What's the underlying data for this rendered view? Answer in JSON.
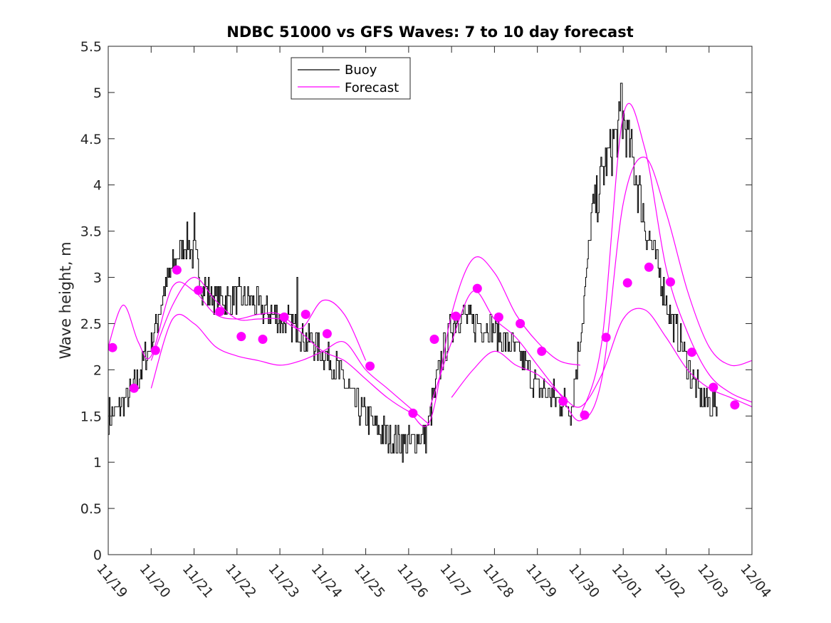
{
  "chart_data": {
    "type": "line",
    "title": "NDBC 51000 vs GFS Waves: 7 to 10 day forecast",
    "xlabel": "",
    "ylabel": "Wave height, m",
    "xlim": [
      0,
      15
    ],
    "ylim": [
      0,
      5.5
    ],
    "x_tick_values": [
      0,
      1,
      2,
      3,
      4,
      5,
      6,
      7,
      8,
      9,
      10,
      11,
      12,
      13,
      14,
      15
    ],
    "x_tick_labels": [
      "11/19",
      "11/20",
      "11/21",
      "11/22",
      "11/23",
      "11/24",
      "11/25",
      "11/26",
      "11/27",
      "11/28",
      "11/29",
      "11/30",
      "12/01",
      "12/02",
      "12/03",
      "12/04"
    ],
    "y_tick_values": [
      0,
      0.5,
      1,
      1.5,
      2,
      2.5,
      3,
      3.5,
      4,
      4.5,
      5,
      5.5
    ],
    "y_tick_labels": [
      "0",
      "0.5",
      "1",
      "1.5",
      "2",
      "2.5",
      "3",
      "3.5",
      "4",
      "4.5",
      "5",
      "5.5"
    ],
    "legend": {
      "position": "top-left",
      "entries": [
        {
          "label": "Buoy",
          "color": "#000000"
        },
        {
          "label": "Forecast",
          "color": "#ff00ff"
        }
      ]
    },
    "colors": {
      "buoy": "#000000",
      "forecast": "#ff00ff"
    },
    "buoy": {
      "name": "Buoy",
      "x": [
        0,
        0.3,
        0.6,
        1.0,
        1.4,
        1.8,
        2.05,
        2.2,
        2.4,
        2.7,
        3.0,
        3.4,
        3.8,
        4.2,
        4.6,
        5.0,
        5.4,
        5.8,
        6.2,
        6.6,
        7.0,
        7.4,
        7.75,
        8.0,
        8.2,
        8.5,
        8.8,
        9.2,
        9.6,
        10.0,
        10.4,
        10.8,
        11.1,
        11.25,
        11.5,
        11.8,
        12.0,
        12.2,
        12.5,
        12.8,
        13.1,
        13.4,
        13.6,
        13.8,
        14.0,
        14.2
      ],
      "y": [
        1.5,
        1.6,
        1.8,
        2.3,
        3.0,
        3.4,
        3.2,
        2.9,
        2.8,
        2.75,
        2.8,
        2.7,
        2.6,
        2.5,
        2.35,
        2.2,
        1.95,
        1.6,
        1.4,
        1.25,
        1.2,
        1.3,
        2.1,
        2.5,
        2.6,
        2.5,
        2.5,
        2.35,
        2.15,
        1.8,
        1.7,
        1.6,
        2.8,
        3.6,
        4.1,
        4.5,
        4.7,
        4.3,
        3.6,
        3.1,
        2.6,
        2.2,
        1.9,
        1.7,
        1.65,
        1.6
      ],
      "noise_amplitude": 0.18,
      "spikes": [
        [
          2.0,
          3.7
        ],
        [
          4.4,
          3.0
        ],
        [
          6.9,
          1.2
        ],
        [
          11.95,
          5.1
        ]
      ]
    },
    "forecast": {
      "name": "Forecast",
      "series": [
        {
          "x": [
            0,
            0.35,
            0.7,
            1.0,
            1.5,
            2.0,
            2.5,
            3.0,
            3.5,
            4.0,
            4.5
          ],
          "y": [
            2.25,
            2.7,
            2.3,
            2.15,
            2.9,
            2.85,
            2.6,
            2.55,
            2.6,
            2.6,
            2.4
          ]
        },
        {
          "x": [
            1.0,
            1.5,
            2.0,
            2.5,
            3.0,
            3.5,
            4.0,
            4.5,
            5.0,
            5.5,
            6.0
          ],
          "y": [
            2.1,
            2.7,
            3.0,
            2.75,
            2.55,
            2.55,
            2.55,
            2.45,
            2.75,
            2.6,
            2.1
          ]
        },
        {
          "x": [
            1.0,
            1.5,
            2.0,
            2.5,
            3.0,
            3.5,
            4.0,
            4.5,
            5.0,
            5.5,
            6.0,
            6.5,
            7.0,
            7.5
          ],
          "y": [
            1.8,
            2.55,
            2.5,
            2.25,
            2.15,
            2.1,
            2.05,
            2.1,
            2.2,
            2.3,
            2.0,
            1.8,
            1.6,
            1.4
          ]
        },
        {
          "x": [
            4.5,
            5.0,
            5.5,
            6.0,
            6.5,
            7.0,
            7.5,
            8.0,
            8.5,
            9.0,
            9.5,
            10.0,
            10.5,
            11.0
          ],
          "y": [
            2.4,
            2.2,
            2.1,
            1.9,
            1.7,
            1.55,
            1.45,
            2.6,
            3.2,
            3.05,
            2.6,
            2.3,
            2.1,
            2.05
          ]
        },
        {
          "x": [
            7.5,
            8.0,
            8.5,
            9.0,
            9.5,
            10.0,
            10.5,
            11.0,
            11.5,
            12.0,
            12.5,
            13.0,
            13.5,
            14.0,
            14.5,
            15.0
          ],
          "y": [
            1.6,
            2.3,
            2.85,
            2.55,
            2.35,
            2.05,
            1.75,
            1.45,
            1.9,
            3.8,
            4.3,
            3.7,
            2.85,
            2.25,
            2.05,
            2.1
          ]
        },
        {
          "x": [
            8.0,
            8.5,
            9.0,
            9.5,
            10.0,
            10.5,
            11.0,
            11.5,
            12.0,
            12.5,
            13.0,
            13.5,
            14.0,
            14.5,
            15.0
          ],
          "y": [
            1.7,
            2.0,
            2.2,
            2.05,
            1.95,
            1.75,
            1.6,
            1.95,
            2.55,
            2.65,
            2.35,
            2.0,
            1.8,
            1.7,
            1.6
          ]
        },
        {
          "x": [
            11.0,
            11.5,
            12.0,
            12.5,
            13.0,
            13.5,
            14.0,
            14.5,
            15.0
          ],
          "y": [
            1.5,
            2.3,
            4.75,
            4.4,
            3.1,
            2.4,
            1.95,
            1.75,
            1.65
          ]
        }
      ]
    },
    "markers": {
      "name": "Forecast points",
      "x": [
        0.1,
        0.6,
        1.1,
        1.6,
        2.1,
        2.6,
        3.1,
        3.6,
        4.1,
        4.6,
        5.1,
        6.1,
        7.1,
        7.6,
        8.1,
        8.6,
        9.1,
        9.6,
        10.1,
        10.6,
        11.1,
        11.6,
        12.1,
        12.6,
        13.1,
        13.6,
        14.1,
        14.6
      ],
      "y": [
        2.24,
        1.8,
        2.21,
        3.08,
        2.86,
        2.63,
        2.36,
        2.33,
        2.57,
        2.6,
        2.39,
        2.04,
        1.53,
        2.33,
        2.58,
        2.88,
        2.57,
        2.5,
        2.2,
        1.66,
        1.51,
        2.35,
        2.94,
        3.11,
        2.95,
        2.19,
        1.81,
        1.62
      ]
    }
  }
}
